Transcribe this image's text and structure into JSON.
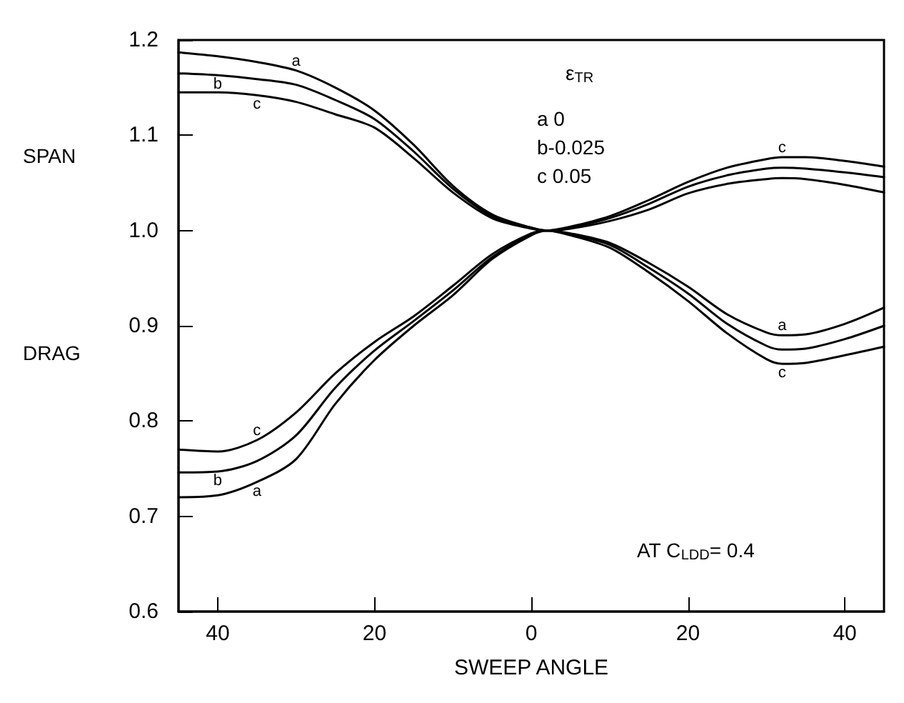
{
  "chart_data": {
    "type": "line",
    "xlabel": "SWEEP ANGLE",
    "x": [
      -45,
      -40,
      -35,
      -30,
      -25,
      -20,
      -15,
      -10,
      -5,
      0,
      2,
      5,
      10,
      15,
      20,
      25,
      30,
      32,
      35,
      40,
      45
    ],
    "series": [
      {
        "name": "a",
        "color": "#000000",
        "values": [
          1.187,
          1.183,
          1.177,
          1.168,
          1.15,
          1.126,
          1.09,
          1.047,
          1.017,
          1.003,
          1.0,
          1.002,
          1.01,
          1.022,
          1.039,
          1.049,
          1.054,
          1.055,
          1.054,
          1.048,
          1.04
        ]
      },
      {
        "name": "b",
        "color": "#000000",
        "values": [
          1.165,
          1.163,
          1.159,
          1.153,
          1.137,
          1.117,
          1.083,
          1.044,
          1.015,
          1.003,
          1.0,
          1.003,
          1.013,
          1.028,
          1.046,
          1.058,
          1.065,
          1.066,
          1.065,
          1.061,
          1.056
        ]
      },
      {
        "name": "c",
        "color": "#000000",
        "values": [
          1.145,
          1.145,
          1.142,
          1.135,
          1.122,
          1.108,
          1.076,
          1.04,
          1.013,
          1.002,
          1.0,
          1.004,
          1.015,
          1.032,
          1.051,
          1.066,
          1.075,
          1.077,
          1.077,
          1.073,
          1.067
        ]
      },
      {
        "name": "a",
        "color": "#000000",
        "values": [
          0.72,
          0.722,
          0.736,
          0.76,
          0.818,
          0.864,
          0.9,
          0.932,
          0.97,
          0.995,
          1.0,
          0.997,
          0.987,
          0.966,
          0.941,
          0.912,
          0.893,
          0.89,
          0.891,
          0.902,
          0.919
        ]
      },
      {
        "name": "b",
        "color": "#000000",
        "values": [
          0.746,
          0.747,
          0.758,
          0.785,
          0.835,
          0.874,
          0.905,
          0.937,
          0.972,
          0.996,
          1.0,
          0.996,
          0.985,
          0.961,
          0.934,
          0.902,
          0.879,
          0.875,
          0.876,
          0.886,
          0.9
        ]
      },
      {
        "name": "c",
        "color": "#000000",
        "values": [
          0.77,
          0.768,
          0.78,
          0.809,
          0.85,
          0.883,
          0.91,
          0.942,
          0.975,
          0.997,
          1.0,
          0.995,
          0.982,
          0.956,
          0.926,
          0.892,
          0.865,
          0.86,
          0.861,
          0.869,
          0.878
        ]
      }
    ],
    "xlim": [
      -45,
      45
    ],
    "xticks": [
      {
        "value": -40,
        "label": "40"
      },
      {
        "value": -20,
        "label": "20"
      },
      0,
      20,
      40
    ],
    "ylim": [
      0.6,
      1.2
    ],
    "yticks": [
      0.6,
      0.7,
      0.8,
      0.9,
      {
        "value": 1.0,
        "label": "1.0"
      },
      1.1,
      1.2
    ],
    "annotations": [
      "ε$_{TR}$",
      "a 0",
      "b-0.025",
      "c 0.05",
      "SPAN",
      "DRAG",
      "AT C$_{LDD}$= 0.4"
    ],
    "legend": false,
    "grid": false,
    "marker": "none",
    "line_style": "solid"
  }
}
